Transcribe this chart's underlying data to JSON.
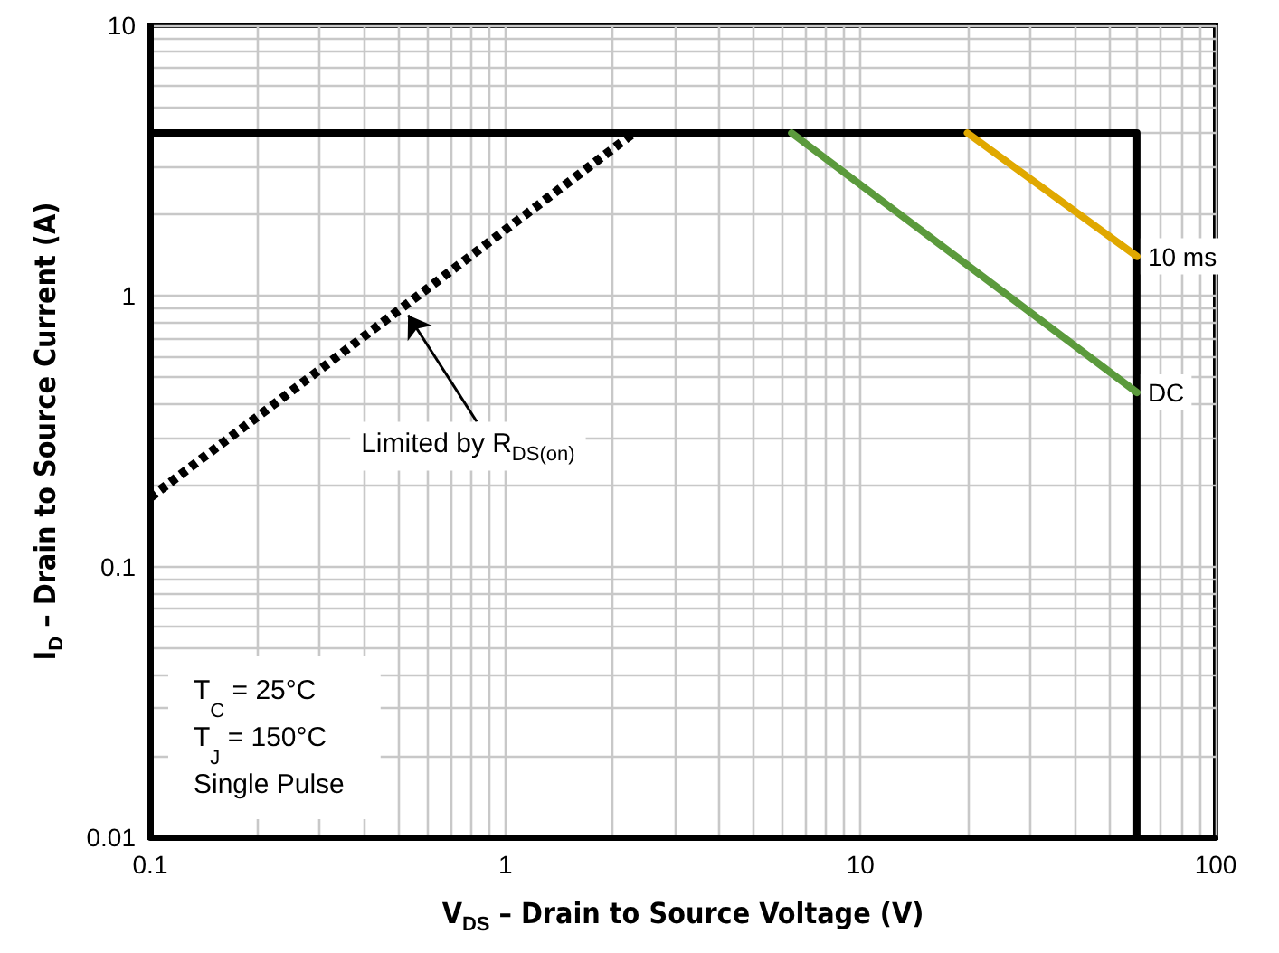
{
  "chart_data": {
    "type": "line",
    "xlabel": "V$_{DS}$ – Drain to Source Voltage (V)",
    "ylabel": "I$_{D}$ – Drain to Source Current (A)",
    "log": "xy",
    "grid": true,
    "legend": false,
    "marker": "none",
    "xlim": [
      0.1,
      100
    ],
    "ylim": [
      0.01,
      10
    ],
    "xticks": [
      0.1,
      {
        "value": 0.2,
        "label": null
      },
      {
        "value": 0.3,
        "label": null
      },
      {
        "value": 0.4,
        "label": null
      },
      {
        "value": 0.5,
        "label": null
      },
      {
        "value": 0.6,
        "label": null
      },
      {
        "value": 0.7,
        "label": null
      },
      {
        "value": 0.8,
        "label": null
      },
      {
        "value": 0.9,
        "label": null
      },
      1,
      {
        "value": 2,
        "label": null
      },
      {
        "value": 3,
        "label": null
      },
      {
        "value": 4,
        "label": null
      },
      {
        "value": 5,
        "label": null
      },
      {
        "value": 6,
        "label": null
      },
      {
        "value": 7,
        "label": null
      },
      {
        "value": 8,
        "label": null
      },
      {
        "value": 9,
        "label": null
      },
      10,
      {
        "value": 20,
        "label": null
      },
      {
        "value": 30,
        "label": null
      },
      {
        "value": 40,
        "label": null
      },
      {
        "value": 50,
        "label": null
      },
      {
        "value": 60,
        "label": null
      },
      {
        "value": 70,
        "label": null
      },
      {
        "value": 80,
        "label": null
      },
      {
        "value": 90,
        "label": null
      },
      100
    ],
    "yticks": [
      0.01,
      {
        "value": 0.02,
        "label": null
      },
      {
        "value": 0.03,
        "label": null
      },
      {
        "value": 0.04,
        "label": null
      },
      {
        "value": 0.05,
        "label": null
      },
      {
        "value": 0.06,
        "label": null
      },
      {
        "value": 0.07,
        "label": null
      },
      {
        "value": 0.08,
        "label": null
      },
      {
        "value": 0.09,
        "label": null
      },
      0.1,
      {
        "value": 0.2,
        "label": null
      },
      {
        "value": 0.3,
        "label": null
      },
      {
        "value": 0.4,
        "label": null
      },
      {
        "value": 0.5,
        "label": null
      },
      {
        "value": 0.6,
        "label": null
      },
      {
        "value": 0.7,
        "label": null
      },
      {
        "value": 0.8,
        "label": null
      },
      {
        "value": 0.9,
        "label": null
      },
      1,
      {
        "value": 2,
        "label": null
      },
      {
        "value": 3,
        "label": null
      },
      {
        "value": 4,
        "label": null
      },
      {
        "value": 5,
        "label": null
      },
      {
        "value": 6,
        "label": null
      },
      {
        "value": 7,
        "label": null
      },
      {
        "value": 8,
        "label": null
      },
      {
        "value": 9,
        "label": null
      },
      10
    ],
    "series": [
      {
        "color": "#000000",
        "x": [
          0.1,
          60,
          60
        ],
        "values": [
          4,
          4,
          0.01
        ]
      },
      {
        "color": "#000000",
        "line_style": "dotted",
        "x": [
          0.1,
          2.3
        ],
        "values": [
          0.18,
          4
        ]
      },
      {
        "name": "10 ms",
        "color": "#e0a800",
        "x": [
          20,
          60
        ],
        "values": [
          4,
          1.4
        ]
      },
      {
        "name": "DC",
        "color": "#5b9a3c",
        "x": [
          6.4,
          60
        ],
        "values": [
          4,
          0.44
        ]
      }
    ],
    "annotations": [
      {
        "text": "Limited by R$_{DS(on)}$",
        "x": 0.52,
        "y": 0.89
      },
      "T$_{C}$ = 25°C",
      "T$_{J}$ = 150°C",
      "Single Pulse"
    ]
  }
}
